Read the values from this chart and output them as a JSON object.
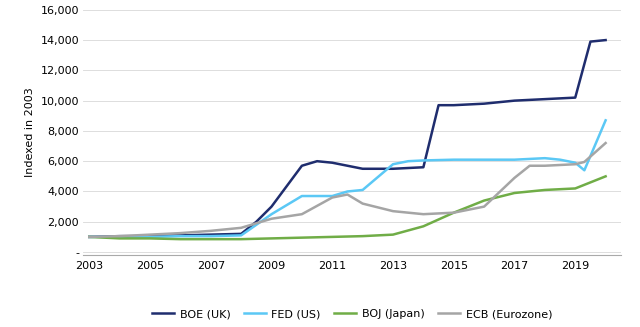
{
  "ylabel": "Indexed in 2003",
  "ylim": [
    -200,
    16000
  ],
  "yticks": [
    0,
    2000,
    4000,
    6000,
    8000,
    10000,
    12000,
    14000,
    16000
  ],
  "ytick_labels": [
    "-",
    "2,000",
    "4,000",
    "6,000",
    "8,000",
    "10,000",
    "12,000",
    "14,000",
    "16,000"
  ],
  "xlim": [
    2002.8,
    2020.5
  ],
  "xticks": [
    2003,
    2005,
    2007,
    2009,
    2011,
    2013,
    2015,
    2017,
    2019
  ],
  "series": {
    "BOE (UK)": {
      "color": "#1f2d6e",
      "x": [
        2003,
        2004,
        2005,
        2006,
        2007,
        2008,
        2008.5,
        2009,
        2010,
        2010.5,
        2011,
        2011.5,
        2012,
        2013,
        2014,
        2014.5,
        2015,
        2016,
        2017,
        2018,
        2019,
        2019.5,
        2020
      ],
      "y": [
        1000,
        1050,
        1050,
        1100,
        1150,
        1200,
        2000,
        3000,
        5700,
        6000,
        5900,
        5700,
        5500,
        5500,
        5600,
        9700,
        9700,
        9800,
        10000,
        10100,
        10200,
        13900,
        14000
      ]
    },
    "FED (US)": {
      "color": "#5bc8f5",
      "x": [
        2003,
        2004,
        2005,
        2006,
        2007,
        2008,
        2009,
        2010,
        2011,
        2011.5,
        2012,
        2013,
        2013.5,
        2014,
        2015,
        2016,
        2017,
        2018,
        2018.5,
        2019,
        2019.3,
        2020
      ],
      "y": [
        1000,
        1000,
        1000,
        1050,
        1050,
        1100,
        2500,
        3700,
        3700,
        4000,
        4100,
        5800,
        6000,
        6050,
        6100,
        6100,
        6100,
        6200,
        6100,
        5900,
        5400,
        8700
      ]
    },
    "BOJ (Japan)": {
      "color": "#70ad47",
      "x": [
        2003,
        2004,
        2005,
        2006,
        2007,
        2008,
        2009,
        2010,
        2011,
        2012,
        2013,
        2014,
        2015,
        2016,
        2017,
        2018,
        2019,
        2020
      ],
      "y": [
        1000,
        900,
        900,
        850,
        850,
        850,
        900,
        950,
        1000,
        1050,
        1150,
        1700,
        2600,
        3400,
        3900,
        4100,
        4200,
        5000
      ]
    },
    "ECB (Eurozone)": {
      "color": "#a5a5a5",
      "x": [
        2003,
        2004,
        2005,
        2006,
        2007,
        2008,
        2009,
        2010,
        2011,
        2011.5,
        2012,
        2013,
        2014,
        2015,
        2016,
        2017,
        2017.5,
        2018,
        2019,
        2019.3,
        2020
      ],
      "y": [
        1000,
        1050,
        1150,
        1250,
        1400,
        1600,
        2200,
        2500,
        3600,
        3800,
        3200,
        2700,
        2500,
        2600,
        3000,
        4900,
        5700,
        5700,
        5800,
        5950,
        7200
      ]
    }
  },
  "legend_order": [
    "BOE (UK)",
    "FED (US)",
    "BOJ (Japan)",
    "ECB (Eurozone)"
  ],
  "background_color": "#ffffff",
  "linewidth": 1.8
}
